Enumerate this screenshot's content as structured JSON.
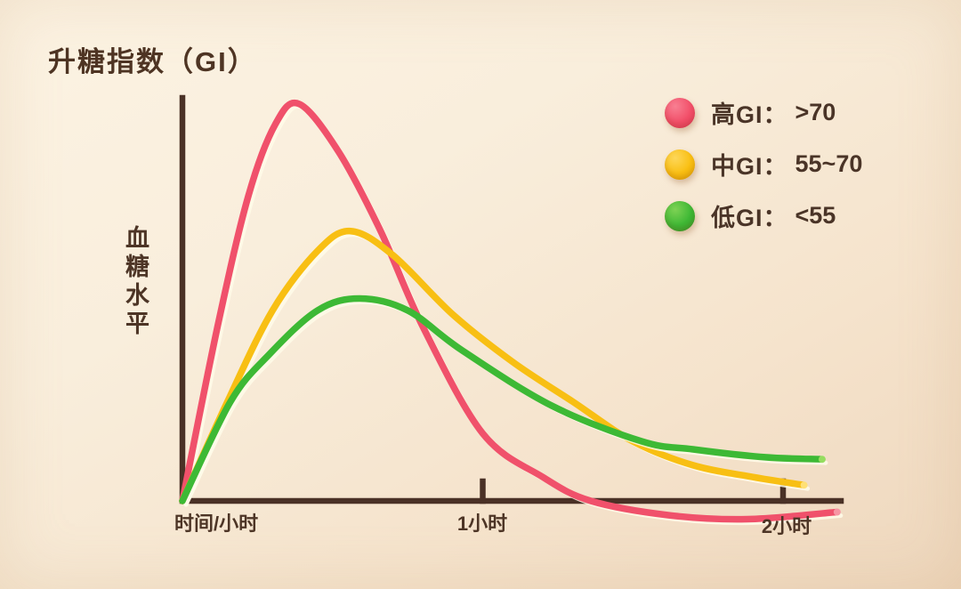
{
  "title": "升糖指数（GI）",
  "y_axis_label": "血糖水平",
  "x_axis": {
    "origin_label": "时间/小时",
    "tick_labels": [
      "1小时",
      "2小时"
    ]
  },
  "legend": [
    {
      "slug": "high-gi",
      "label": "高GI：",
      "value": ">70",
      "color": "#f24f69",
      "dot_highlight": "#f87f92",
      "dot_edge": "#e63e5c"
    },
    {
      "slug": "mid-gi",
      "label": "中GI：",
      "value": "55~70",
      "color": "#f9bf12",
      "dot_highlight": "#fdd75a",
      "dot_edge": "#eaaf06"
    },
    {
      "slug": "low-gi",
      "label": "低GI：",
      "value": "<55",
      "color": "#3eb835",
      "dot_highlight": "#7ed254",
      "dot_edge": "#2fa329"
    }
  ],
  "colors": {
    "axis": "#4a3126",
    "text": "#4d3526",
    "curve_highlight": "#fffbe9",
    "background_top": "#fcf3e3",
    "background_bottom": "#eed7bd"
  },
  "chart_data": {
    "type": "line",
    "title": "升糖指数（GI）",
    "xlabel": "时间/小时",
    "ylabel": "血糖水平",
    "x_unit": "hours",
    "x_range": [
      0,
      2.2
    ],
    "ylim": [
      -8,
      105
    ],
    "baseline": 0,
    "grid": false,
    "legend_position": "top-right",
    "x_ticks": [
      {
        "t": 1,
        "label": "1小时"
      },
      {
        "t": 2,
        "label": "2小时"
      }
    ],
    "series": [
      {
        "name": "高GI",
        "slug": "high-gi",
        "threshold": ">70",
        "color": "#f0516b",
        "tip_color": "#f79aa6",
        "points": [
          [
            0,
            0
          ],
          [
            0.12,
            45
          ],
          [
            0.22,
            77
          ],
          [
            0.31,
            95
          ],
          [
            0.39,
            100
          ],
          [
            0.52,
            88
          ],
          [
            0.66,
            68
          ],
          [
            0.8,
            44
          ],
          [
            1.0,
            17
          ],
          [
            1.2,
            6
          ],
          [
            1.36,
            0
          ],
          [
            1.62,
            -3.6
          ],
          [
            1.88,
            -4.6
          ],
          [
            2.18,
            -2.8
          ]
        ]
      },
      {
        "name": "中GI",
        "slug": "mid-gi",
        "threshold": "55~70",
        "color": "#f8bf13",
        "tip_color": "#ffe27a",
        "points": [
          [
            0,
            0
          ],
          [
            0.15,
            25
          ],
          [
            0.3,
            48
          ],
          [
            0.45,
            63
          ],
          [
            0.56,
            68
          ],
          [
            0.7,
            62
          ],
          [
            0.9,
            47
          ],
          [
            1.1,
            35
          ],
          [
            1.3,
            25
          ],
          [
            1.5,
            15
          ],
          [
            1.7,
            9
          ],
          [
            1.9,
            6
          ],
          [
            2.07,
            4
          ]
        ]
      },
      {
        "name": "低GI",
        "slug": "low-gi",
        "threshold": "<55",
        "color": "#3db935",
        "tip_color": "#9ade62",
        "points": [
          [
            0,
            0
          ],
          [
            0.16,
            25
          ],
          [
            0.29,
            37
          ],
          [
            0.45,
            48
          ],
          [
            0.59,
            51
          ],
          [
            0.75,
            48
          ],
          [
            0.93,
            38
          ],
          [
            1.23,
            24
          ],
          [
            1.53,
            15
          ],
          [
            1.7,
            13
          ],
          [
            1.94,
            11
          ],
          [
            2.13,
            10.5
          ]
        ]
      }
    ]
  }
}
